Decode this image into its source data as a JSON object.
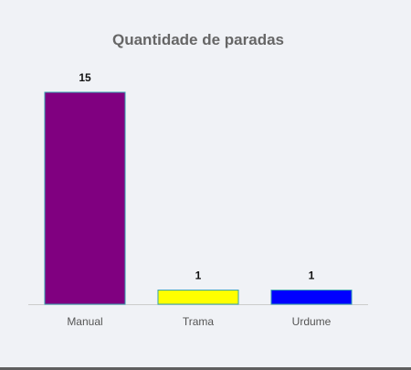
{
  "chart_data": {
    "type": "bar",
    "title": "Quantidade de paradas",
    "xlabel": "",
    "ylabel": "",
    "categories": [
      "Manual",
      "Trama",
      "Urdume"
    ],
    "values": [
      15,
      1,
      1
    ],
    "colors": [
      "#800080",
      "#ffff00",
      "#0000ff"
    ],
    "border_color": "#36a2b0",
    "axis_color": "#cccccc",
    "ylim": [
      0,
      15
    ],
    "grid": false,
    "legend": "none",
    "data_labels": true
  }
}
